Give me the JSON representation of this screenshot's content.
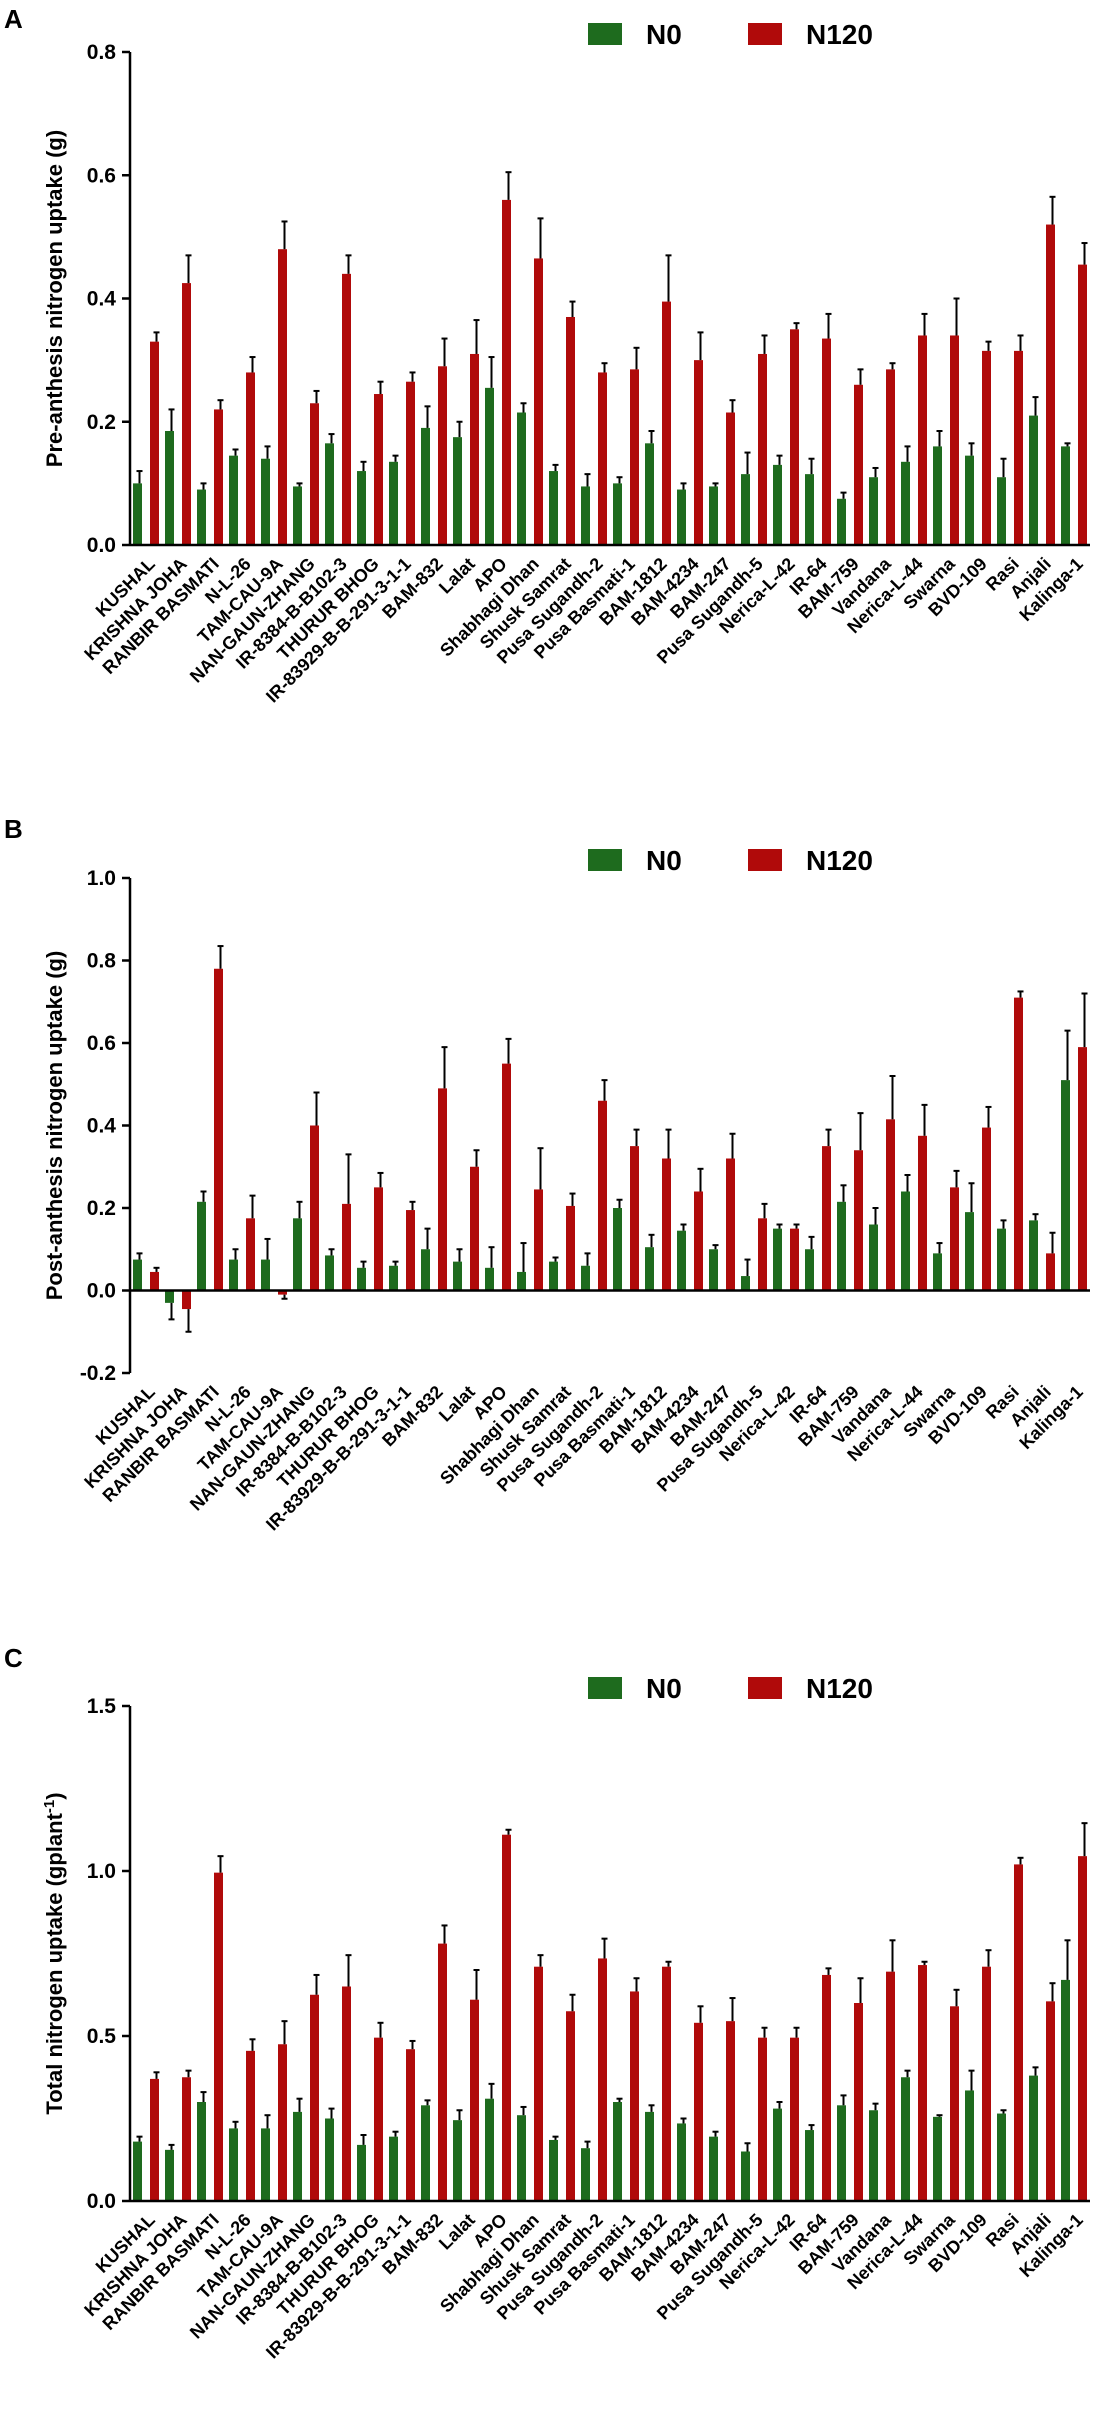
{
  "colors": {
    "N0": "#1e6b1e",
    "N120": "#b00a0a"
  },
  "chart_data": [
    {
      "panel": "A",
      "type": "bar",
      "ylabel": "Pre-anthesis nitrogen uptake (g)",
      "ylim": [
        0,
        0.8
      ],
      "yticks": [
        0.0,
        0.2,
        0.4,
        0.6,
        0.8
      ],
      "ytick_labels": [
        "0.0",
        "0.2",
        "0.4",
        "0.6",
        "0.8"
      ],
      "legend": [
        "N0",
        "N120"
      ],
      "categories": [
        "KUSHAL",
        "KRISHNA JOHA",
        "RANBIR BASMATI",
        "N-L-26",
        "TAM-CAU-9A",
        "NAN-GAUN-ZHANG",
        "IR-8384-B-B102-3",
        "THURUR BHOG",
        "IR-83929-B-B-291-3-1-1",
        "BAM-832",
        "Lalat",
        "APO",
        "Shabhagi Dhan",
        "Shusk Samrat",
        "Pusa Sugandh-2",
        "Pusa Basmati-1",
        "BAM-1812",
        "BAM-4234",
        "BAM-247",
        "Pusa Sugandh-5",
        "Nerica-L-42",
        "IR-64",
        "BAM-759",
        "Vandana",
        "Nerica-L-44",
        "Swarna",
        "BVD-109",
        "Rasi",
        "Anjali",
        "Kalinga-1"
      ],
      "series": [
        {
          "name": "N0",
          "values": [
            0.1,
            0.185,
            0.09,
            0.145,
            0.14,
            0.095,
            0.165,
            0.12,
            0.135,
            0.19,
            0.175,
            0.255,
            0.215,
            0.12,
            0.095,
            0.1,
            0.165,
            0.09,
            0.095,
            0.115,
            0.13,
            0.115,
            0.075,
            0.11,
            0.135,
            0.16,
            0.145,
            0.11,
            0.21,
            0.16
          ],
          "errors": [
            0.02,
            0.035,
            0.01,
            0.01,
            0.02,
            0.005,
            0.015,
            0.015,
            0.01,
            0.035,
            0.025,
            0.05,
            0.015,
            0.01,
            0.02,
            0.01,
            0.02,
            0.01,
            0.005,
            0.035,
            0.015,
            0.025,
            0.01,
            0.015,
            0.025,
            0.025,
            0.02,
            0.03,
            0.03,
            0.005
          ]
        },
        {
          "name": "N120",
          "values": [
            0.33,
            0.425,
            0.22,
            0.28,
            0.48,
            0.23,
            0.44,
            0.245,
            0.265,
            0.29,
            0.31,
            0.56,
            0.465,
            0.37,
            0.28,
            0.285,
            0.395,
            0.3,
            0.215,
            0.31,
            0.35,
            0.335,
            0.26,
            0.285,
            0.34,
            0.34,
            0.315,
            0.315,
            0.52,
            0.455
          ],
          "errors": [
            0.015,
            0.045,
            0.015,
            0.025,
            0.045,
            0.02,
            0.03,
            0.02,
            0.015,
            0.045,
            0.055,
            0.045,
            0.065,
            0.025,
            0.015,
            0.035,
            0.075,
            0.045,
            0.02,
            0.03,
            0.01,
            0.04,
            0.025,
            0.01,
            0.035,
            0.06,
            0.015,
            0.025,
            0.045,
            0.035
          ]
        }
      ]
    },
    {
      "panel": "B",
      "type": "bar",
      "ylabel": "Post-anthesis nitrogen uptake (g)",
      "ylim": [
        -0.2,
        1.0
      ],
      "yticks": [
        -0.2,
        0.0,
        0.2,
        0.4,
        0.6,
        0.8,
        1.0
      ],
      "ytick_labels": [
        "-0.2",
        "0.0",
        "0.2",
        "0.4",
        "0.6",
        "0.8",
        "1.0"
      ],
      "legend": [
        "N0",
        "N120"
      ],
      "categories": [
        "KUSHAL",
        "KRISHNA JOHA",
        "RANBIR BASMATI",
        "N-L-26",
        "TAM-CAU-9A",
        "NAN-GAUN-ZHANG",
        "IR-8384-B-B102-3",
        "THURUR BHOG",
        "IR-83929-B-B-291-3-1-1",
        "BAM-832",
        "Lalat",
        "APO",
        "Shabhagi Dhan",
        "Shusk Samrat",
        "Pusa Sugandh-2",
        "Pusa Basmati-1",
        "BAM-1812",
        "BAM-4234",
        "BAM-247",
        "Pusa Sugandh-5",
        "Nerica-L-42",
        "IR-64",
        "BAM-759",
        "Vandana",
        "Nerica-L-44",
        "Swarna",
        "BVD-109",
        "Rasi",
        "Anjali",
        "Kalinga-1"
      ],
      "series": [
        {
          "name": "N0",
          "values": [
            0.075,
            -0.03,
            0.215,
            0.075,
            0.075,
            0.175,
            0.085,
            0.055,
            0.06,
            0.1,
            0.07,
            0.055,
            0.045,
            0.07,
            0.06,
            0.2,
            0.105,
            0.145,
            0.1,
            0.035,
            0.15,
            0.1,
            0.215,
            0.16,
            0.24,
            0.09,
            0.19,
            0.15,
            0.17,
            0.51
          ],
          "errors": [
            0.015,
            0.04,
            0.025,
            0.025,
            0.05,
            0.04,
            0.015,
            0.015,
            0.01,
            0.05,
            0.03,
            0.05,
            0.07,
            0.01,
            0.03,
            0.02,
            0.03,
            0.015,
            0.01,
            0.04,
            0.01,
            0.03,
            0.04,
            0.04,
            0.04,
            0.025,
            0.07,
            0.02,
            0.015,
            0.12
          ]
        },
        {
          "name": "N120",
          "values": [
            0.045,
            -0.045,
            0.78,
            0.175,
            -0.01,
            0.4,
            0.21,
            0.25,
            0.195,
            0.49,
            0.3,
            0.55,
            0.245,
            0.205,
            0.46,
            0.35,
            0.32,
            0.24,
            0.32,
            0.175,
            0.15,
            0.35,
            0.34,
            0.415,
            0.375,
            0.25,
            0.395,
            0.71,
            0.09,
            0.59
          ],
          "errors": [
            0.01,
            0.055,
            0.055,
            0.055,
            0.01,
            0.08,
            0.12,
            0.035,
            0.02,
            0.1,
            0.04,
            0.06,
            0.1,
            0.03,
            0.05,
            0.04,
            0.07,
            0.055,
            0.06,
            0.035,
            0.01,
            0.04,
            0.09,
            0.105,
            0.075,
            0.04,
            0.05,
            0.015,
            0.05,
            0.13
          ]
        }
      ]
    },
    {
      "panel": "C",
      "type": "bar",
      "ylabel": "Total nitrogen uptake (gplant",
      "ylabel_sup": "-1",
      "ylabel_close": ")",
      "ylim": [
        0,
        1.5
      ],
      "yticks": [
        0.0,
        0.5,
        1.0,
        1.5
      ],
      "ytick_labels": [
        "0.0",
        "0.5",
        "1.0",
        "1.5"
      ],
      "legend": [
        "N0",
        "N120"
      ],
      "categories": [
        "KUSHAL",
        "KRISHNA JOHA",
        "RANBIR BASMATI",
        "N-L-26",
        "TAM-CAU-9A",
        "NAN-GAUN-ZHANG",
        "IR-8384-B-B102-3",
        "THURUR BHOG",
        "IR-83929-B-B-291-3-1-1",
        "BAM-832",
        "Lalat",
        "APO",
        "Shabhagi Dhan",
        "Shusk Samrat",
        "Pusa Sugandh-2",
        "Pusa Basmati-1",
        "BAM-1812",
        "BAM-4234",
        "BAM-247",
        "Pusa Sugandh-5",
        "Nerica-L-42",
        "IR-64",
        "BAM-759",
        "Vandana",
        "Nerica-L-44",
        "Swarna",
        "BVD-109",
        "Rasi",
        "Anjali",
        "Kalinga-1"
      ],
      "series": [
        {
          "name": "N0",
          "values": [
            0.18,
            0.155,
            0.3,
            0.22,
            0.22,
            0.27,
            0.25,
            0.17,
            0.195,
            0.29,
            0.245,
            0.31,
            0.26,
            0.185,
            0.16,
            0.3,
            0.27,
            0.235,
            0.195,
            0.15,
            0.28,
            0.215,
            0.29,
            0.275,
            0.375,
            0.255,
            0.335,
            0.265,
            0.38,
            0.67
          ],
          "errors": [
            0.015,
            0.015,
            0.03,
            0.02,
            0.04,
            0.04,
            0.03,
            0.03,
            0.015,
            0.015,
            0.03,
            0.045,
            0.025,
            0.01,
            0.02,
            0.01,
            0.02,
            0.015,
            0.015,
            0.025,
            0.02,
            0.015,
            0.03,
            0.02,
            0.02,
            0.005,
            0.06,
            0.01,
            0.025,
            0.12
          ]
        },
        {
          "name": "N120",
          "values": [
            0.37,
            0.375,
            0.995,
            0.455,
            0.475,
            0.625,
            0.65,
            0.495,
            0.46,
            0.78,
            0.61,
            1.11,
            0.71,
            0.575,
            0.735,
            0.635,
            0.71,
            0.54,
            0.545,
            0.495,
            0.495,
            0.685,
            0.6,
            0.695,
            0.715,
            0.59,
            0.71,
            1.02,
            0.605,
            1.045
          ],
          "errors": [
            0.02,
            0.02,
            0.05,
            0.035,
            0.07,
            0.06,
            0.095,
            0.045,
            0.025,
            0.055,
            0.09,
            0.015,
            0.035,
            0.05,
            0.06,
            0.04,
            0.015,
            0.05,
            0.07,
            0.03,
            0.03,
            0.02,
            0.075,
            0.095,
            0.01,
            0.05,
            0.05,
            0.02,
            0.055,
            0.1
          ]
        }
      ]
    }
  ]
}
